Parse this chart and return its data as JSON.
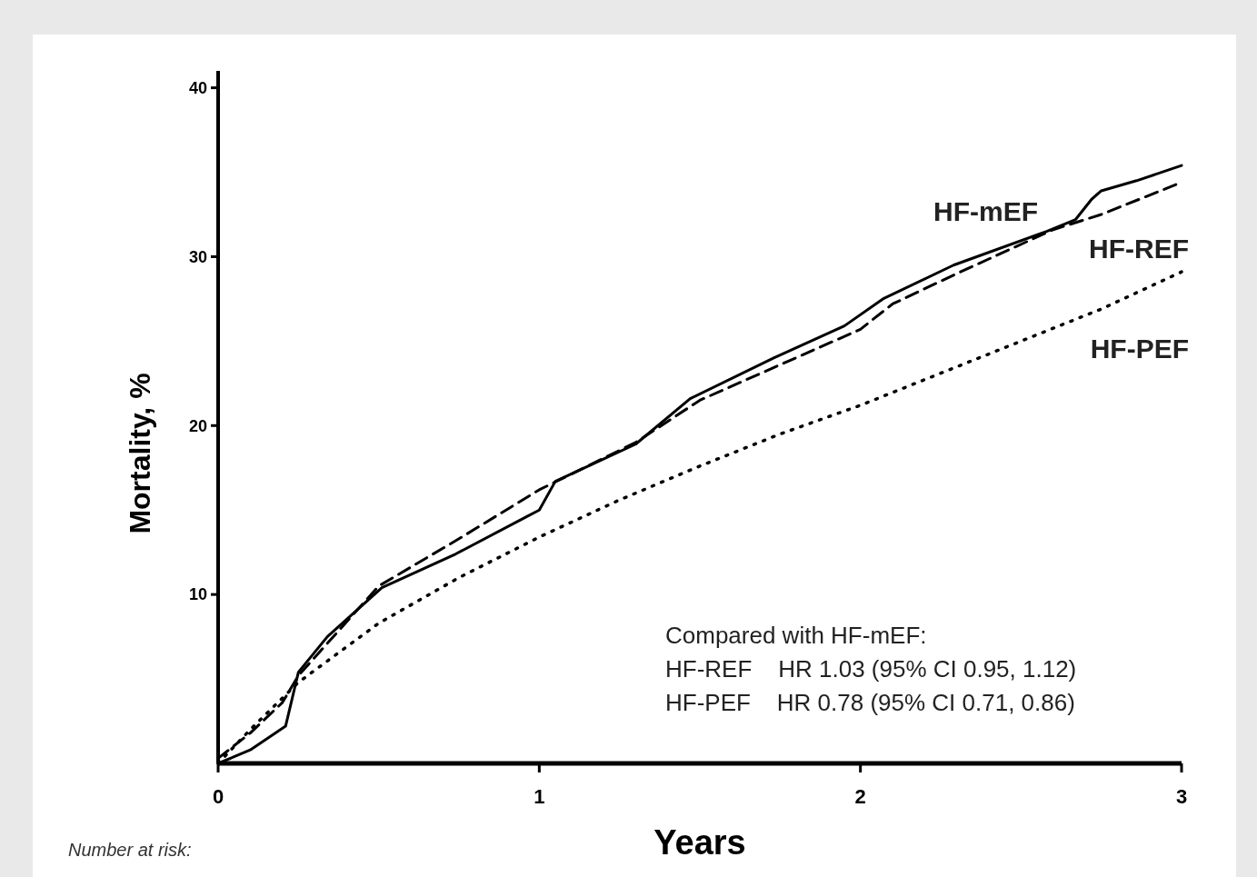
{
  "chart_data": {
    "type": "line",
    "xlabel": "Years",
    "ylabel": "Mortality, %",
    "xlim": [
      0,
      3
    ],
    "xticks": [
      0,
      1,
      2,
      3
    ],
    "ylim": [
      0,
      41
    ],
    "yticks": [
      10,
      20,
      30,
      40
    ],
    "grid": false,
    "legend": false,
    "marker": "none",
    "series": [
      {
        "name": "HF-mEF",
        "color": "#000000",
        "line_style": "solid",
        "x": [
          0,
          0.1,
          0.21,
          0.25,
          0.34,
          0.51,
          0.74,
          0.96,
          1.0,
          1.05,
          1.3,
          1.47,
          1.73,
          1.95,
          2.07,
          2.29,
          2.58,
          2.67,
          2.72,
          2.75,
          2.86,
          3.0
        ],
        "values": [
          0,
          0.8,
          2.2,
          5.4,
          7.5,
          10.4,
          12.4,
          14.6,
          15.0,
          16.7,
          18.9,
          21.6,
          24.0,
          25.9,
          27.5,
          29.5,
          31.5,
          32.2,
          33.4,
          33.9,
          34.5,
          35.4
        ]
      },
      {
        "name": "HF-REF",
        "color": "#000000",
        "line_style": "dashed",
        "x": [
          0,
          0.1,
          0.2,
          0.25,
          0.5,
          0.75,
          1.0,
          1.3,
          1.5,
          2.0,
          2.1,
          2.3,
          2.6,
          2.75,
          3.0
        ],
        "values": [
          0.3,
          1.8,
          3.6,
          5.2,
          10.5,
          13.3,
          16.2,
          19.0,
          21.5,
          25.7,
          27.2,
          29.0,
          31.6,
          32.5,
          34.4
        ]
      },
      {
        "name": "HF-PEF",
        "color": "#000000",
        "line_style": "dotted",
        "x": [
          0,
          0.1,
          0.25,
          0.5,
          0.75,
          1.0,
          1.25,
          1.5,
          1.75,
          2.0,
          2.25,
          2.5,
          2.75,
          3.0
        ],
        "values": [
          0,
          2.0,
          4.8,
          8.3,
          11.0,
          13.4,
          15.6,
          17.6,
          19.5,
          21.2,
          23.1,
          25.0,
          26.9,
          29.1
        ]
      }
    ],
    "annotations": [
      "Compared with HF-mEF:",
      "HF-REF    HR 1.03 (95% CI 0.95, 1.12)",
      "HF-PEF    HR 0.78 (95% CI 0.71, 0.86)",
      "Number at risk:"
    ]
  }
}
